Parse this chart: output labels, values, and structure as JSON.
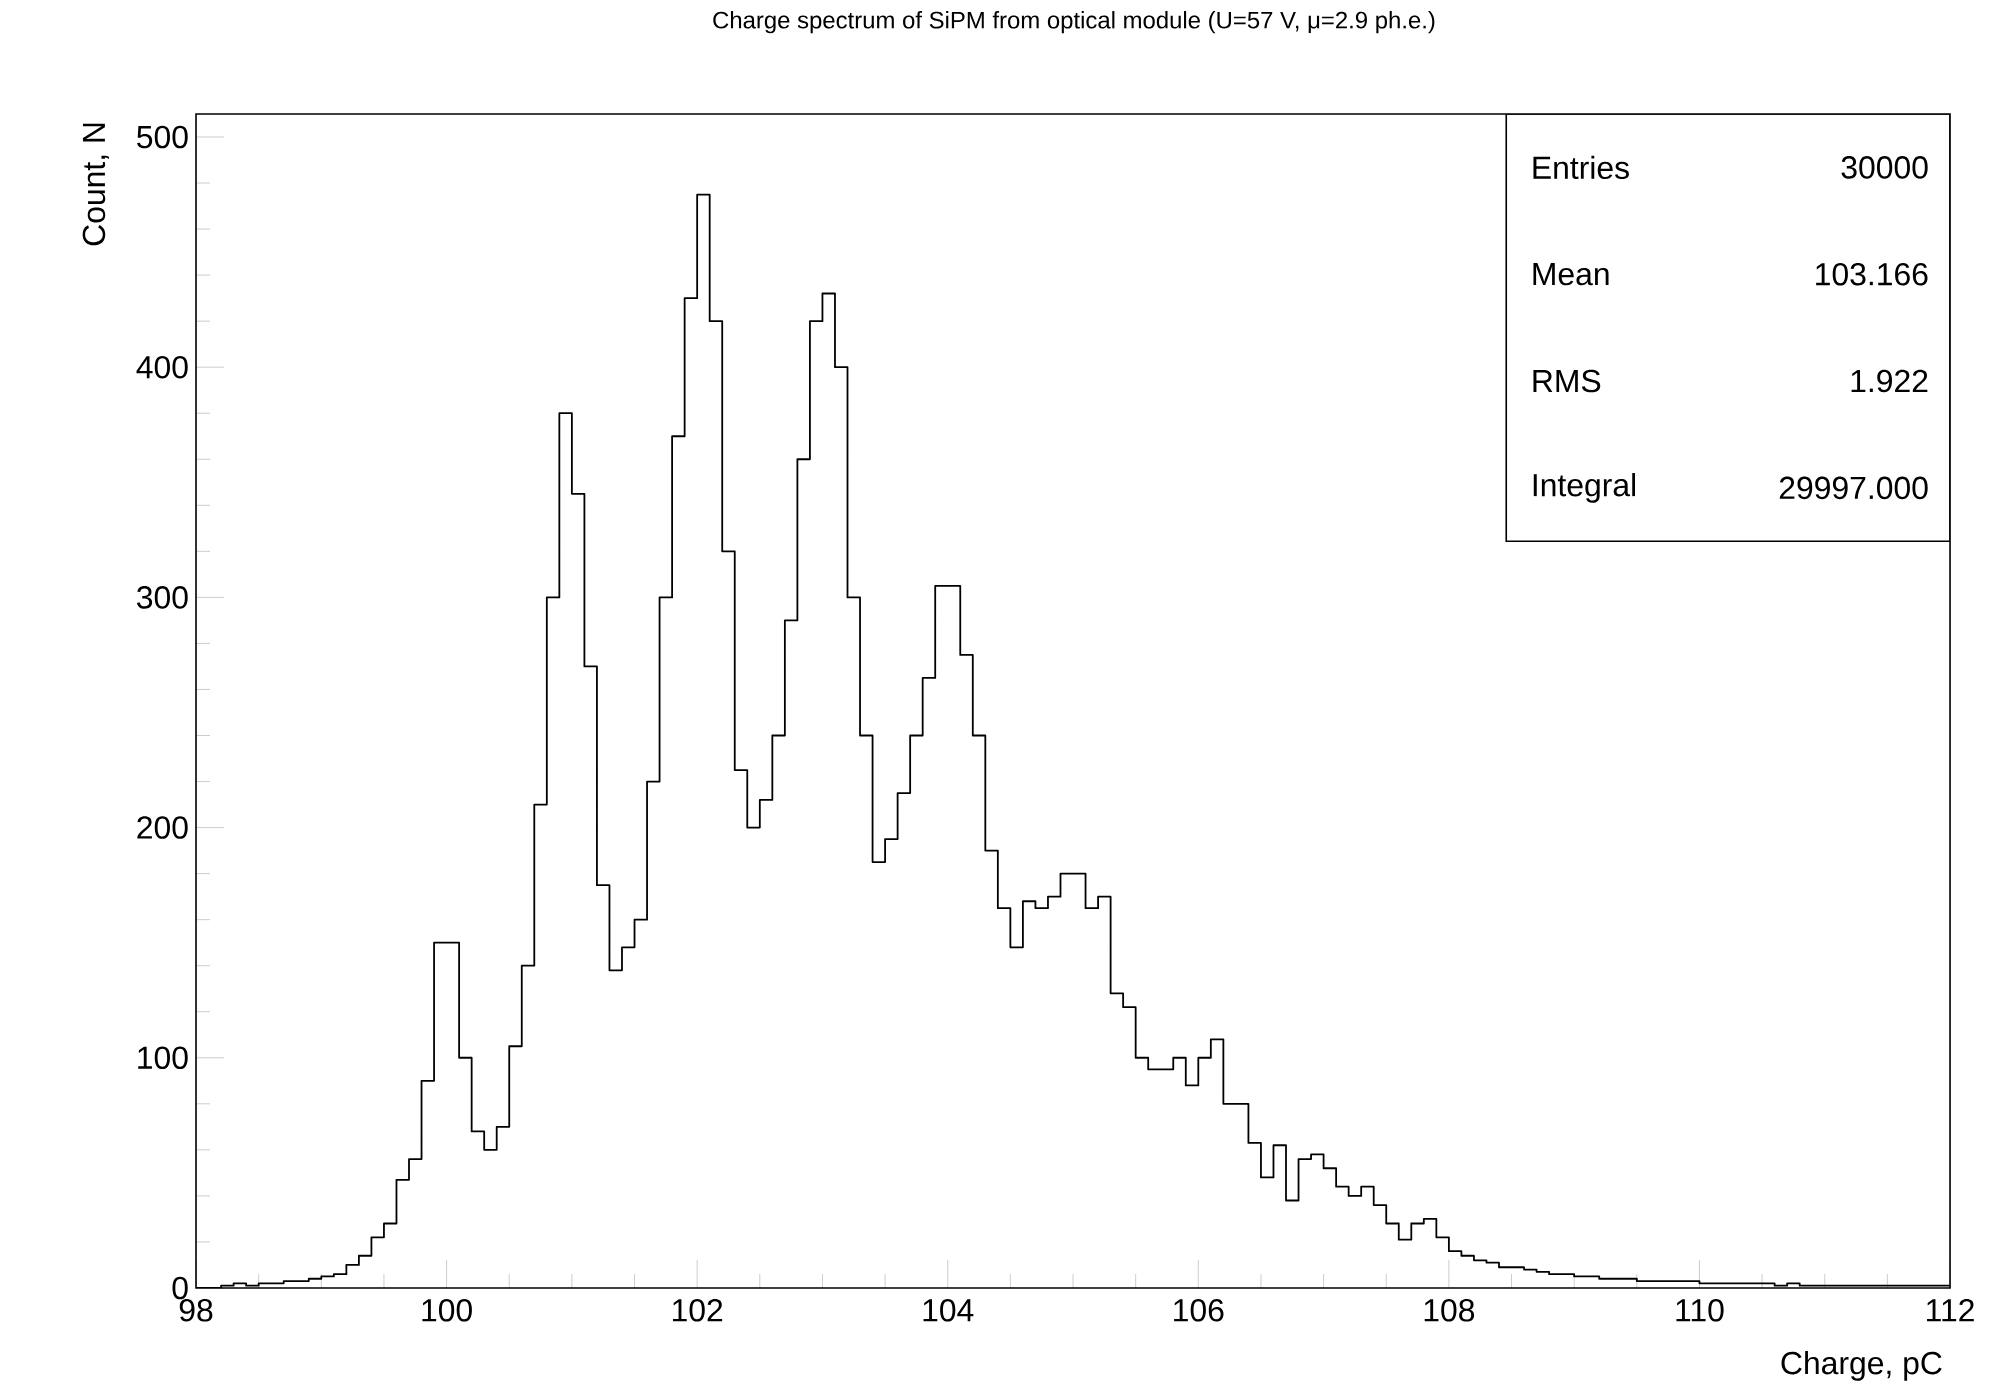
{
  "chart_data": {
    "type": "histogram",
    "title": "Charge spectrum of SiPM from optical module (U=57 V, μ=2.9 ph.e.)",
    "xlabel": "Charge, pC",
    "ylabel": "Count, N",
    "bins": [
      98.0,
      98.1,
      98.2,
      98.3,
      98.4,
      98.5,
      98.6,
      98.7,
      98.8,
      98.9,
      99.0,
      99.1,
      99.2,
      99.3,
      99.4,
      99.5,
      99.6,
      99.7,
      99.8,
      99.9,
      100.0,
      100.1,
      100.2,
      100.3,
      100.4,
      100.5,
      100.6,
      100.7,
      100.8,
      100.9,
      101.0,
      101.1,
      101.2,
      101.3,
      101.4,
      101.5,
      101.6,
      101.7,
      101.8,
      101.9,
      102.0,
      102.1,
      102.2,
      102.3,
      102.4,
      102.5,
      102.6,
      102.7,
      102.8,
      102.9,
      103.0,
      103.1,
      103.2,
      103.3,
      103.4,
      103.5,
      103.6,
      103.7,
      103.8,
      103.9,
      104.0,
      104.1,
      104.2,
      104.3,
      104.4,
      104.5,
      104.6,
      104.7,
      104.8,
      104.9,
      105.0,
      105.1,
      105.2,
      105.3,
      105.4,
      105.5,
      105.6,
      105.7,
      105.8,
      105.9,
      106.0,
      106.1,
      106.2,
      106.3,
      106.4,
      106.5,
      106.6,
      106.7,
      106.8,
      106.9,
      107.0,
      107.1,
      107.2,
      107.3,
      107.4,
      107.5,
      107.6,
      107.7,
      107.8,
      107.9,
      108.0,
      108.1,
      108.2,
      108.3,
      108.4,
      108.5,
      108.6,
      108.7,
      108.8,
      108.9,
      109.0,
      109.1,
      109.2,
      109.3,
      109.4,
      109.5,
      109.6,
      109.7,
      109.8,
      109.9,
      110.0,
      110.1,
      110.2,
      110.3,
      110.4,
      110.5,
      110.6,
      110.7,
      110.8,
      110.9,
      111.0,
      111.1,
      111.2,
      111.3,
      111.4,
      111.5,
      111.6,
      111.7,
      111.8,
      111.9,
      112.0
    ],
    "values": [
      0,
      0,
      1,
      2,
      1,
      2,
      2,
      3,
      3,
      4,
      5,
      6,
      10,
      14,
      22,
      28,
      47,
      56,
      90,
      150,
      150,
      100,
      68,
      60,
      70,
      105,
      140,
      210,
      300,
      380,
      345,
      270,
      175,
      138,
      148,
      160,
      220,
      300,
      370,
      430,
      475,
      420,
      320,
      225,
      200,
      212,
      240,
      290,
      360,
      420,
      432,
      400,
      300,
      240,
      185,
      195,
      215,
      240,
      265,
      305,
      305,
      275,
      240,
      190,
      165,
      148,
      168,
      165,
      170,
      180,
      180,
      165,
      170,
      128,
      122,
      100,
      95,
      95,
      100,
      88,
      100,
      108,
      80,
      80,
      63,
      48,
      62,
      38,
      56,
      58,
      52,
      44,
      40,
      44,
      36,
      28,
      21,
      28,
      30,
      22,
      16,
      14,
      12,
      11,
      9,
      9,
      8,
      7,
      6,
      6,
      5,
      5,
      4,
      4,
      4,
      3,
      3,
      3,
      3,
      3,
      2,
      2,
      2,
      2,
      2,
      2,
      1,
      2,
      1,
      1,
      1,
      1,
      1,
      1,
      1,
      1,
      1,
      1,
      1,
      1
    ],
    "color": "#000000",
    "xlim": [
      98,
      112
    ],
    "ylim": [
      0,
      510
    ],
    "xticks": [
      98,
      100,
      102,
      104,
      106,
      108,
      110,
      112
    ],
    "yticks": [
      0,
      100,
      200,
      300,
      400,
      500
    ],
    "annotations": [
      "Entries",
      "30000",
      "Mean",
      "103.166",
      "RMS",
      "1.922",
      "Integral",
      "29997.000"
    ]
  }
}
